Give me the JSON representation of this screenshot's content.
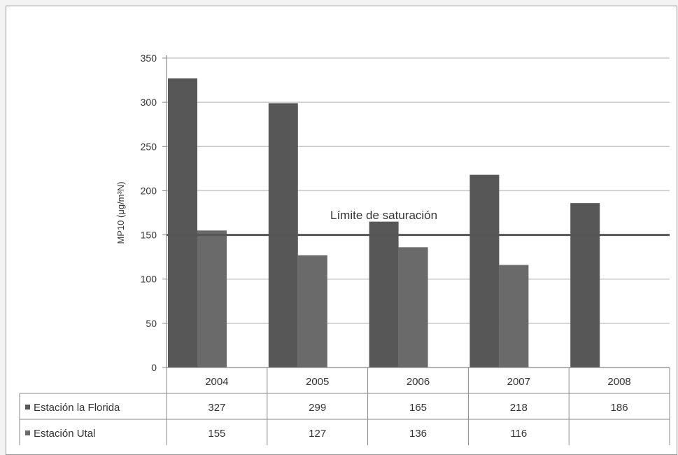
{
  "chart_data": {
    "type": "bar",
    "title": "",
    "xlabel": "",
    "ylabel": "MP10 (μg/m³N)",
    "ylim": [
      0,
      350
    ],
    "yticks": [
      0,
      50,
      100,
      150,
      200,
      250,
      300,
      350
    ],
    "categories": [
      "2004",
      "2005",
      "2006",
      "2007",
      "2008"
    ],
    "series": [
      {
        "name": "Estación la Florida",
        "values": [
          327,
          299,
          165,
          218,
          186
        ],
        "color": "#575757"
      },
      {
        "name": "Estación Utal",
        "values": [
          155,
          127,
          136,
          116,
          null
        ],
        "color": "#6a6a6a"
      }
    ],
    "reference_line": {
      "value": 150,
      "label": "Límite de saturación",
      "color": "#555555"
    },
    "grid": true,
    "legend": "data-table-below",
    "data_table": {
      "rows": [
        {
          "label": "Estación la Florida",
          "values": [
            "327",
            "299",
            "165",
            "218",
            "186"
          ]
        },
        {
          "label": "Estación Utal",
          "values": [
            "155",
            "127",
            "136",
            "116",
            ""
          ]
        }
      ]
    }
  }
}
